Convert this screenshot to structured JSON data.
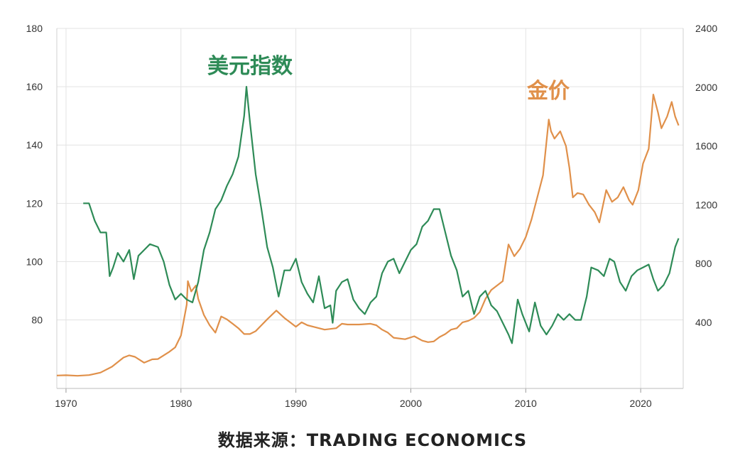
{
  "chart_data": {
    "type": "line",
    "x_ticks": [
      "1970",
      "1980",
      "1990",
      "2000",
      "2010",
      "2020"
    ],
    "y_left_ticks": [
      "180",
      "160",
      "140",
      "120",
      "100",
      "80"
    ],
    "y_right_ticks": [
      "2400",
      "2000",
      "1600",
      "1200",
      "800",
      "400"
    ],
    "y_left_range": [
      56.5,
      180
    ],
    "y_right_range": [
      -50,
      2400
    ],
    "x_range": [
      1968.7,
      2023.2
    ],
    "grid": true,
    "colors": {
      "usd_index": "#2e8b57",
      "gold": "#e0904a",
      "grid": "#e3e3e3"
    },
    "series": [
      {
        "name": "美元指数",
        "axis": "left",
        "points": [
          [
            1971.0,
            120
          ],
          [
            1971.5,
            120
          ],
          [
            1972.0,
            114
          ],
          [
            1972.5,
            110
          ],
          [
            1973.0,
            110
          ],
          [
            1973.3,
            95
          ],
          [
            1973.6,
            98
          ],
          [
            1974.0,
            103
          ],
          [
            1974.5,
            100
          ],
          [
            1975.0,
            104
          ],
          [
            1975.4,
            94
          ],
          [
            1975.8,
            102
          ],
          [
            1976.3,
            104
          ],
          [
            1976.8,
            106
          ],
          [
            1977.5,
            105
          ],
          [
            1978.0,
            100
          ],
          [
            1978.5,
            92
          ],
          [
            1979.0,
            87
          ],
          [
            1979.5,
            89
          ],
          [
            1980.0,
            87
          ],
          [
            1980.5,
            86
          ],
          [
            1981.0,
            93
          ],
          [
            1981.5,
            104
          ],
          [
            1982.0,
            110
          ],
          [
            1982.5,
            118
          ],
          [
            1983.0,
            121
          ],
          [
            1983.5,
            126
          ],
          [
            1984.0,
            130
          ],
          [
            1984.5,
            136
          ],
          [
            1985.0,
            150
          ],
          [
            1985.2,
            160
          ],
          [
            1985.5,
            148
          ],
          [
            1986.0,
            130
          ],
          [
            1986.5,
            118
          ],
          [
            1987.0,
            105
          ],
          [
            1987.5,
            98
          ],
          [
            1988.0,
            88
          ],
          [
            1988.5,
            97
          ],
          [
            1989.0,
            97
          ],
          [
            1989.5,
            101
          ],
          [
            1990.0,
            93
          ],
          [
            1990.5,
            89
          ],
          [
            1991.0,
            86
          ],
          [
            1991.5,
            95
          ],
          [
            1992.0,
            84
          ],
          [
            1992.5,
            85
          ],
          [
            1992.7,
            79
          ],
          [
            1993.0,
            90
          ],
          [
            1993.5,
            93
          ],
          [
            1994.0,
            94
          ],
          [
            1994.5,
            87
          ],
          [
            1995.0,
            84
          ],
          [
            1995.5,
            82
          ],
          [
            1996.0,
            86
          ],
          [
            1996.5,
            88
          ],
          [
            1997.0,
            96
          ],
          [
            1997.5,
            100
          ],
          [
            1998.0,
            101
          ],
          [
            1998.5,
            96
          ],
          [
            1999.0,
            100
          ],
          [
            1999.5,
            104
          ],
          [
            2000.0,
            106
          ],
          [
            2000.5,
            112
          ],
          [
            2001.0,
            114
          ],
          [
            2001.5,
            118
          ],
          [
            2002.0,
            118
          ],
          [
            2002.5,
            110
          ],
          [
            2003.0,
            102
          ],
          [
            2003.5,
            97
          ],
          [
            2004.0,
            88
          ],
          [
            2004.5,
            90
          ],
          [
            2005.0,
            82
          ],
          [
            2005.5,
            88
          ],
          [
            2006.0,
            90
          ],
          [
            2006.5,
            85
          ],
          [
            2007.0,
            83
          ],
          [
            2007.5,
            79
          ],
          [
            2008.0,
            75
          ],
          [
            2008.3,
            72
          ],
          [
            2008.8,
            87
          ],
          [
            2009.2,
            82
          ],
          [
            2009.8,
            76
          ],
          [
            2010.3,
            86
          ],
          [
            2010.8,
            78
          ],
          [
            2011.3,
            75
          ],
          [
            2011.8,
            78
          ],
          [
            2012.3,
            82
          ],
          [
            2012.8,
            80
          ],
          [
            2013.3,
            82
          ],
          [
            2013.8,
            80
          ],
          [
            2014.3,
            80
          ],
          [
            2014.8,
            88
          ],
          [
            2015.2,
            98
          ],
          [
            2015.8,
            97
          ],
          [
            2016.3,
            95
          ],
          [
            2016.8,
            101
          ],
          [
            2017.2,
            100
          ],
          [
            2017.7,
            93
          ],
          [
            2018.2,
            90
          ],
          [
            2018.7,
            95
          ],
          [
            2019.2,
            97
          ],
          [
            2019.7,
            98
          ],
          [
            2020.2,
            99
          ],
          [
            2020.6,
            94
          ],
          [
            2021.0,
            90
          ],
          [
            2021.5,
            92
          ],
          [
            2022.0,
            96
          ],
          [
            2022.5,
            105
          ],
          [
            2022.8,
            108
          ]
        ]
      },
      {
        "name": "金价",
        "axis": "right",
        "points": [
          [
            1968.7,
            38
          ],
          [
            1969.5,
            40
          ],
          [
            1970.5,
            36
          ],
          [
            1971.5,
            41
          ],
          [
            1972.5,
            58
          ],
          [
            1973.5,
            98
          ],
          [
            1974.5,
            160
          ],
          [
            1975.0,
            175
          ],
          [
            1975.5,
            165
          ],
          [
            1976.3,
            125
          ],
          [
            1977.0,
            148
          ],
          [
            1977.5,
            150
          ],
          [
            1978.0,
            175
          ],
          [
            1978.5,
            200
          ],
          [
            1979.0,
            230
          ],
          [
            1979.5,
            310
          ],
          [
            1980.0,
            520
          ],
          [
            1980.1,
            680
          ],
          [
            1980.4,
            610
          ],
          [
            1980.8,
            650
          ],
          [
            1981.0,
            560
          ],
          [
            1981.5,
            450
          ],
          [
            1982.0,
            380
          ],
          [
            1982.5,
            330
          ],
          [
            1983.0,
            440
          ],
          [
            1983.5,
            420
          ],
          [
            1984.0,
            390
          ],
          [
            1984.5,
            360
          ],
          [
            1985.0,
            320
          ],
          [
            1985.5,
            320
          ],
          [
            1986.0,
            340
          ],
          [
            1986.5,
            380
          ],
          [
            1987.0,
            420
          ],
          [
            1987.8,
            480
          ],
          [
            1988.5,
            430
          ],
          [
            1989.0,
            400
          ],
          [
            1989.5,
            370
          ],
          [
            1990.0,
            400
          ],
          [
            1990.5,
            380
          ],
          [
            1991.0,
            370
          ],
          [
            1992.0,
            350
          ],
          [
            1993.0,
            360
          ],
          [
            1993.5,
            390
          ],
          [
            1994.0,
            385
          ],
          [
            1995.0,
            385
          ],
          [
            1996.0,
            390
          ],
          [
            1996.5,
            380
          ],
          [
            1997.0,
            350
          ],
          [
            1997.5,
            330
          ],
          [
            1998.0,
            295
          ],
          [
            1999.0,
            285
          ],
          [
            1999.8,
            305
          ],
          [
            2000.5,
            275
          ],
          [
            2001.0,
            265
          ],
          [
            2001.5,
            270
          ],
          [
            2002.0,
            300
          ],
          [
            2002.5,
            320
          ],
          [
            2003.0,
            350
          ],
          [
            2003.5,
            360
          ],
          [
            2004.0,
            400
          ],
          [
            2004.5,
            410
          ],
          [
            2005.0,
            430
          ],
          [
            2005.5,
            470
          ],
          [
            2006.0,
            560
          ],
          [
            2006.5,
            620
          ],
          [
            2007.0,
            650
          ],
          [
            2007.5,
            680
          ],
          [
            2008.0,
            930
          ],
          [
            2008.5,
            850
          ],
          [
            2009.0,
            900
          ],
          [
            2009.5,
            980
          ],
          [
            2010.0,
            1100
          ],
          [
            2010.5,
            1250
          ],
          [
            2011.0,
            1400
          ],
          [
            2011.5,
            1780
          ],
          [
            2011.7,
            1700
          ],
          [
            2012.0,
            1650
          ],
          [
            2012.5,
            1700
          ],
          [
            2013.0,
            1600
          ],
          [
            2013.3,
            1450
          ],
          [
            2013.6,
            1250
          ],
          [
            2014.0,
            1280
          ],
          [
            2014.5,
            1270
          ],
          [
            2015.0,
            1200
          ],
          [
            2015.5,
            1150
          ],
          [
            2015.9,
            1080
          ],
          [
            2016.5,
            1300
          ],
          [
            2017.0,
            1220
          ],
          [
            2017.5,
            1250
          ],
          [
            2018.0,
            1320
          ],
          [
            2018.5,
            1230
          ],
          [
            2018.8,
            1200
          ],
          [
            2019.3,
            1300
          ],
          [
            2019.7,
            1480
          ],
          [
            2020.2,
            1580
          ],
          [
            2020.6,
            1950
          ],
          [
            2021.0,
            1830
          ],
          [
            2021.3,
            1720
          ],
          [
            2021.8,
            1800
          ],
          [
            2022.2,
            1900
          ],
          [
            2022.5,
            1800
          ],
          [
            2022.8,
            1740
          ]
        ]
      }
    ],
    "source": "数据来源：TRADING ECONOMICS"
  }
}
